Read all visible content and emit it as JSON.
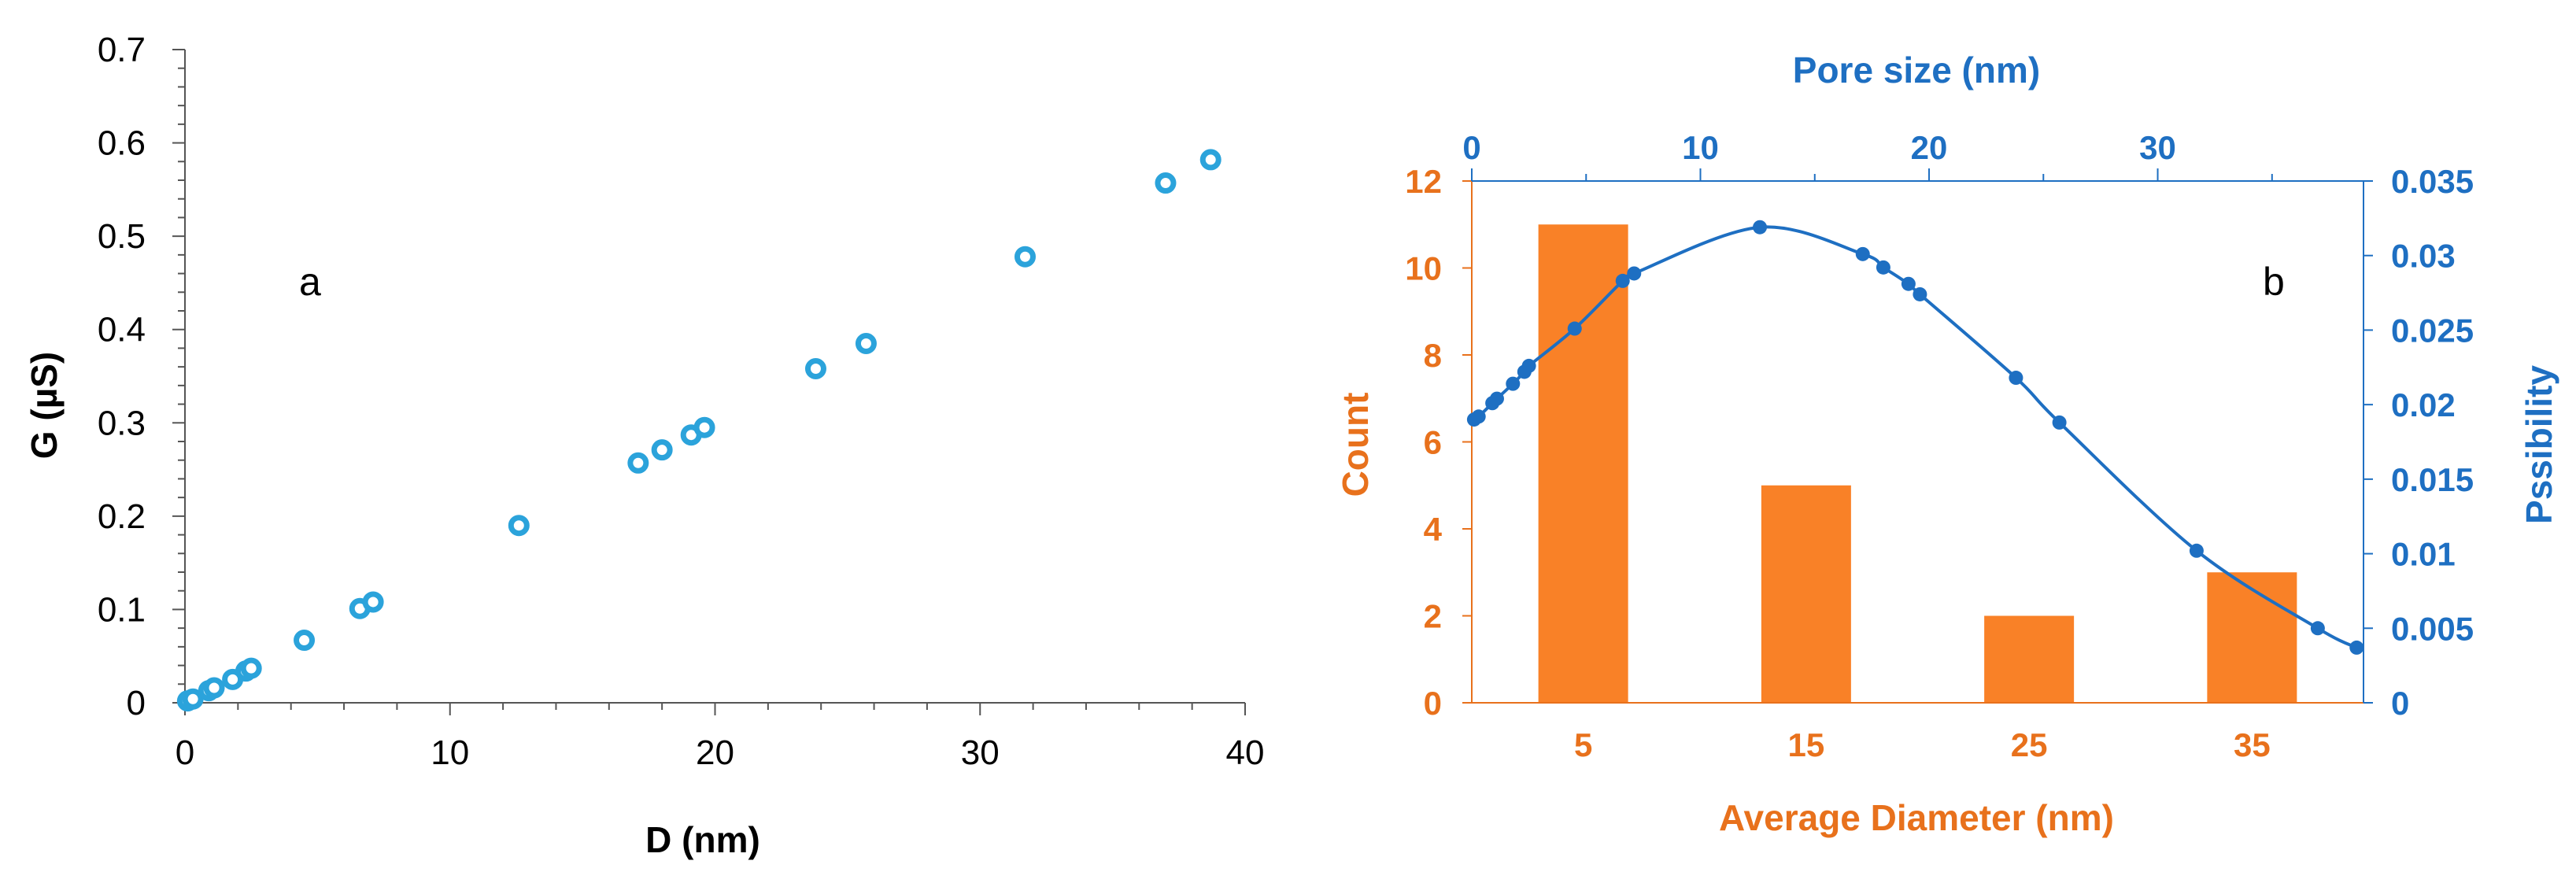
{
  "chart_data": [
    {
      "type": "scatter",
      "panel_label": "a",
      "title": "",
      "xlabel": "D (nm)",
      "ylabel": "G (µS)",
      "xlim": [
        0,
        40
      ],
      "ylim": [
        0,
        0.7
      ],
      "xticks": [
        0,
        10,
        20,
        30,
        40
      ],
      "yticks": [
        0,
        0.1,
        0.2,
        0.3,
        0.4,
        0.5,
        0.6,
        0.7
      ],
      "marker_color": "#2BA3DB",
      "points": [
        {
          "x": 0.1,
          "y": 0.002
        },
        {
          "x": 0.3,
          "y": 0.004
        },
        {
          "x": 0.9,
          "y": 0.013
        },
        {
          "x": 1.1,
          "y": 0.016
        },
        {
          "x": 1.8,
          "y": 0.025
        },
        {
          "x": 2.3,
          "y": 0.034
        },
        {
          "x": 2.5,
          "y": 0.037
        },
        {
          "x": 4.5,
          "y": 0.067
        },
        {
          "x": 6.6,
          "y": 0.101
        },
        {
          "x": 7.1,
          "y": 0.108
        },
        {
          "x": 12.6,
          "y": 0.19
        },
        {
          "x": 17.1,
          "y": 0.257
        },
        {
          "x": 18.0,
          "y": 0.271
        },
        {
          "x": 19.1,
          "y": 0.287
        },
        {
          "x": 19.6,
          "y": 0.295
        },
        {
          "x": 23.8,
          "y": 0.358
        },
        {
          "x": 25.7,
          "y": 0.385
        },
        {
          "x": 31.7,
          "y": 0.478
        },
        {
          "x": 37.0,
          "y": 0.557
        },
        {
          "x": 38.7,
          "y": 0.582
        }
      ]
    },
    {
      "type": "bar+line",
      "panel_label": "b",
      "title": "",
      "bars": {
        "xlabel": "Average Diameter (nm)",
        "ylabel": "Count",
        "categories": [
          "5",
          "15",
          "25",
          "35"
        ],
        "values": [
          11,
          5,
          2,
          3
        ],
        "ylim": [
          0,
          12
        ],
        "yticks": [
          0,
          2,
          4,
          6,
          8,
          10,
          12
        ],
        "color": "#F98127"
      },
      "line": {
        "xlabel": "Pore size (nm)",
        "ylabel": "Pssibility",
        "xlim": [
          0,
          39
        ],
        "xticks": [
          0,
          10,
          20,
          30
        ],
        "ylim": [
          0,
          0.035
        ],
        "yticks": [
          "0",
          "0.005",
          "0.01",
          "0.015",
          "0.02",
          "0.025",
          "0.03",
          "0.035"
        ],
        "color": "#1E6FC2",
        "points": [
          {
            "x": 0.1,
            "y": 0.019
          },
          {
            "x": 0.3,
            "y": 0.0192
          },
          {
            "x": 0.9,
            "y": 0.0201
          },
          {
            "x": 1.1,
            "y": 0.0204
          },
          {
            "x": 1.8,
            "y": 0.0214
          },
          {
            "x": 2.3,
            "y": 0.0222
          },
          {
            "x": 2.5,
            "y": 0.0226
          },
          {
            "x": 4.5,
            "y": 0.0251
          },
          {
            "x": 6.6,
            "y": 0.0283
          },
          {
            "x": 7.1,
            "y": 0.0288
          },
          {
            "x": 12.6,
            "y": 0.0319
          },
          {
            "x": 17.1,
            "y": 0.0301
          },
          {
            "x": 18.0,
            "y": 0.0292
          },
          {
            "x": 19.1,
            "y": 0.0281
          },
          {
            "x": 19.6,
            "y": 0.0274
          },
          {
            "x": 23.8,
            "y": 0.0218
          },
          {
            "x": 25.7,
            "y": 0.0188
          },
          {
            "x": 31.7,
            "y": 0.0102
          },
          {
            "x": 37.0,
            "y": 0.005
          },
          {
            "x": 38.7,
            "y": 0.0037
          }
        ]
      }
    }
  ]
}
